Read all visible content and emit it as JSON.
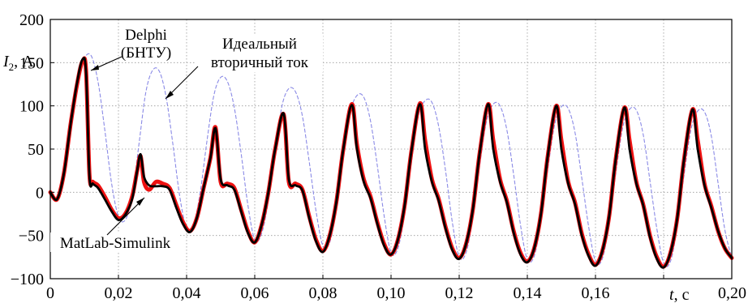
{
  "chart_data": {
    "type": "line",
    "title": "",
    "ylabel": {
      "symbol": "I",
      "subscript": "2",
      "unit": ", А"
    },
    "xlabel": {
      "symbol": "t",
      "unit": ", с"
    },
    "xlim": [
      0,
      0.2
    ],
    "ylim": [
      -100,
      200
    ],
    "grid": true,
    "x_ticks": [
      0,
      0.02,
      0.04,
      0.06,
      0.08,
      0.1,
      0.12,
      0.14,
      0.16,
      0.18,
      0.2
    ],
    "x_tick_labels": [
      "0",
      "0,02",
      "0,04",
      "0,06",
      "0,08",
      "0,10",
      "0,12",
      "0,14",
      "0,16",
      "0,18",
      "0,20"
    ],
    "y_ticks": [
      -100,
      -50,
      0,
      50,
      100,
      150,
      200
    ],
    "y_tick_labels": [
      "−100",
      "−50",
      "0",
      "50",
      "100",
      "150",
      "200"
    ],
    "annotations": {
      "delphi": [
        "Delphi",
        "(БНТУ)"
      ],
      "ideal": [
        "Идеальный",
        "вторичный ток"
      ],
      "matlab": [
        "MatLab-Simulink"
      ]
    },
    "colors": {
      "ideal": "#8a8ae6",
      "matlab": "#ee1111",
      "delphi": "#000000"
    },
    "series": [
      {
        "key": "ideal",
        "style": "dashed",
        "x": [
          0,
          0.002,
          0.004,
          0.006,
          0.008,
          0.01,
          0.012,
          0.014,
          0.016,
          0.018,
          0.02,
          0.022,
          0.024,
          0.026,
          0.028,
          0.03,
          0.032,
          0.034,
          0.036,
          0.038,
          0.04,
          0.042,
          0.044,
          0.046,
          0.048,
          0.05,
          0.052,
          0.054,
          0.056,
          0.058,
          0.06,
          0.062,
          0.064,
          0.066,
          0.068,
          0.07,
          0.072,
          0.074,
          0.076,
          0.078,
          0.08,
          0.082,
          0.084,
          0.086,
          0.088,
          0.09,
          0.092,
          0.094,
          0.096,
          0.098,
          0.1,
          0.102,
          0.104,
          0.106,
          0.108,
          0.11,
          0.112,
          0.114,
          0.116,
          0.118,
          0.12,
          0.122,
          0.124,
          0.126,
          0.128,
          0.13,
          0.132,
          0.134,
          0.136,
          0.138,
          0.14,
          0.142,
          0.144,
          0.146,
          0.148,
          0.15,
          0.152,
          0.154,
          0.156,
          0.158,
          0.16,
          0.162,
          0.164,
          0.166,
          0.168,
          0.17,
          0.172,
          0.174,
          0.176,
          0.178,
          0.18,
          0.182,
          0.184,
          0.186,
          0.188,
          0.19,
          0.192,
          0.194,
          0.196,
          0.198,
          0.2
        ],
        "y": [
          0,
          -8,
          22,
          78,
          128,
          155,
          158,
          128,
          72,
          10,
          -28,
          -32,
          -5,
          55,
          115,
          141,
          140,
          110,
          55,
          -5,
          -42,
          -38,
          0,
          60,
          112,
          133,
          128,
          98,
          45,
          -15,
          -55,
          -48,
          -10,
          48,
          100,
          120,
          116,
          88,
          35,
          -22,
          -62,
          -58,
          -18,
          40,
          92,
          112,
          110,
          82,
          30,
          -28,
          -70,
          -65,
          -25,
          35,
          88,
          106,
          104,
          76,
          25,
          -35,
          -75,
          -70,
          -30,
          30,
          82,
          102,
          100,
          72,
          20,
          -38,
          -78,
          -74,
          -34,
          26,
          78,
          99,
          97,
          69,
          16,
          -40,
          -80,
          -77,
          -37,
          23,
          75,
          96,
          95,
          67,
          13,
          -42,
          -82,
          -80,
          -40,
          20,
          72,
          94,
          93,
          65,
          10,
          -44,
          -76
        ]
      },
      {
        "key": "matlab",
        "style": "solid",
        "x": [
          0,
          0.002,
          0.004,
          0.006,
          0.008,
          0.0095,
          0.0105,
          0.0115,
          0.0125,
          0.014,
          0.016,
          0.018,
          0.02,
          0.022,
          0.024,
          0.0255,
          0.0265,
          0.0275,
          0.029,
          0.031,
          0.033,
          0.035,
          0.037,
          0.039,
          0.041,
          0.043,
          0.045,
          0.047,
          0.0485,
          0.05,
          0.052,
          0.054,
          0.056,
          0.058,
          0.06,
          0.062,
          0.064,
          0.066,
          0.0685,
          0.07,
          0.072,
          0.074,
          0.076,
          0.078,
          0.08,
          0.082,
          0.084,
          0.086,
          0.0885,
          0.09,
          0.092,
          0.094,
          0.096,
          0.098,
          0.1,
          0.102,
          0.104,
          0.106,
          0.1085,
          0.11,
          0.112,
          0.114,
          0.116,
          0.118,
          0.12,
          0.122,
          0.124,
          0.126,
          0.1285,
          0.13,
          0.132,
          0.134,
          0.136,
          0.138,
          0.14,
          0.142,
          0.144,
          0.146,
          0.1485,
          0.15,
          0.152,
          0.154,
          0.156,
          0.158,
          0.16,
          0.162,
          0.164,
          0.166,
          0.1685,
          0.17,
          0.172,
          0.174,
          0.176,
          0.178,
          0.18,
          0.182,
          0.184,
          0.186,
          0.1885,
          0.19,
          0.192,
          0.194,
          0.196,
          0.198,
          0.2
        ],
        "y": [
          0,
          -8,
          22,
          80,
          128,
          152,
          140,
          20,
          12,
          8,
          -5,
          -20,
          -30,
          -25,
          -5,
          25,
          42,
          12,
          3,
          12,
          10,
          5,
          -15,
          -35,
          -45,
          -30,
          5,
          40,
          75,
          12,
          10,
          5,
          -20,
          -45,
          -58,
          -38,
          0,
          50,
          90,
          12,
          10,
          3,
          -28,
          -55,
          -68,
          -50,
          -10,
          50,
          102,
          55,
          15,
          -5,
          -35,
          -60,
          -72,
          -55,
          -15,
          48,
          103,
          60,
          15,
          -8,
          -40,
          -65,
          -76,
          -60,
          -20,
          45,
          102,
          60,
          15,
          -10,
          -45,
          -70,
          -80,
          -65,
          -25,
          42,
          100,
          60,
          12,
          -12,
          -48,
          -72,
          -84,
          -68,
          -28,
          40,
          98,
          60,
          12,
          -14,
          -50,
          -75,
          -86,
          -70,
          -30,
          38,
          96,
          60,
          10,
          -16,
          -45,
          -65,
          -76
        ]
      },
      {
        "key": "delphi",
        "style": "solid",
        "x": [
          0,
          0.002,
          0.004,
          0.006,
          0.008,
          0.0095,
          0.0105,
          0.0115,
          0.0125,
          0.014,
          0.016,
          0.018,
          0.02,
          0.022,
          0.024,
          0.0255,
          0.0265,
          0.0275,
          0.029,
          0.031,
          0.033,
          0.035,
          0.037,
          0.039,
          0.041,
          0.043,
          0.045,
          0.047,
          0.0485,
          0.05,
          0.052,
          0.054,
          0.056,
          0.058,
          0.06,
          0.062,
          0.064,
          0.066,
          0.0685,
          0.07,
          0.072,
          0.074,
          0.076,
          0.078,
          0.08,
          0.082,
          0.084,
          0.086,
          0.0885,
          0.09,
          0.092,
          0.094,
          0.096,
          0.098,
          0.1,
          0.102,
          0.104,
          0.106,
          0.1085,
          0.11,
          0.112,
          0.114,
          0.116,
          0.118,
          0.12,
          0.122,
          0.124,
          0.126,
          0.1285,
          0.13,
          0.132,
          0.134,
          0.136,
          0.138,
          0.14,
          0.142,
          0.144,
          0.146,
          0.1485,
          0.15,
          0.152,
          0.154,
          0.156,
          0.158,
          0.16,
          0.162,
          0.164,
          0.166,
          0.1685,
          0.17,
          0.172,
          0.174,
          0.176,
          0.178,
          0.18,
          0.182,
          0.184,
          0.186,
          0.1885,
          0.19,
          0.192,
          0.194,
          0.196,
          0.198,
          0.2
        ],
        "y": [
          0,
          -8,
          22,
          80,
          130,
          154,
          138,
          18,
          10,
          5,
          -8,
          -22,
          -32,
          -26,
          -8,
          25,
          44,
          18,
          8,
          7,
          7,
          3,
          -18,
          -37,
          -46,
          -30,
          5,
          40,
          74,
          15,
          8,
          3,
          -22,
          -47,
          -58,
          -38,
          0,
          50,
          91,
          15,
          8,
          2,
          -30,
          -57,
          -69,
          -50,
          -10,
          50,
          101,
          50,
          12,
          -7,
          -37,
          -62,
          -72,
          -55,
          -15,
          48,
          102,
          50,
          12,
          -10,
          -42,
          -67,
          -77,
          -60,
          -20,
          45,
          102,
          50,
          12,
          -12,
          -47,
          -72,
          -81,
          -65,
          -25,
          42,
          100,
          50,
          10,
          -14,
          -50,
          -74,
          -85,
          -68,
          -28,
          40,
          98,
          50,
          10,
          -15,
          -52,
          -77,
          -87,
          -70,
          -30,
          38,
          96,
          50,
          8,
          -18,
          -45,
          -65,
          -76
        ]
      }
    ]
  }
}
